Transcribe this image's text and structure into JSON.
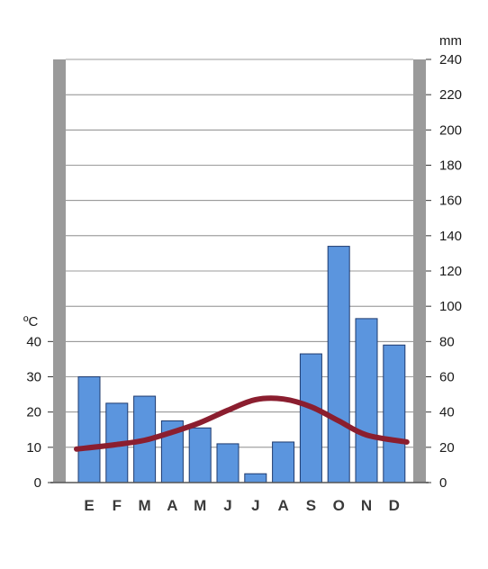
{
  "chart_data": {
    "type": "bar+line",
    "title": "",
    "categories": [
      "E",
      "F",
      "M",
      "A",
      "M",
      "J",
      "J",
      "A",
      "S",
      "O",
      "N",
      "D"
    ],
    "series": [
      {
        "type": "bar",
        "axis": "right",
        "values": [
          60,
          45,
          49,
          35,
          31,
          22,
          5,
          23,
          73,
          134,
          93,
          78
        ]
      },
      {
        "type": "line",
        "axis": "left",
        "values": [
          9.5,
          10.8,
          12,
          14.3,
          17,
          20.5,
          23.5,
          23.7,
          21.5,
          17.5,
          13.5,
          11.5
        ]
      }
    ],
    "y_left": {
      "label": "ºC",
      "ylim": [
        0,
        40
      ],
      "ticks": [
        "0",
        "10",
        "20",
        "30",
        "40"
      ]
    },
    "y_right": {
      "label": "mm",
      "ylim": [
        0,
        240
      ],
      "ticks": [
        "0",
        "20",
        "40",
        "60",
        "80",
        "100",
        "120",
        "140",
        "160",
        "180",
        "200",
        "220",
        "240"
      ]
    },
    "grid": true,
    "colors": {
      "bar": "#5b95de",
      "bar_edge": "#1e3a6e",
      "line": "#8b1e2f",
      "frame": "#9a9a9a",
      "grid": "#7a7a7a"
    }
  }
}
